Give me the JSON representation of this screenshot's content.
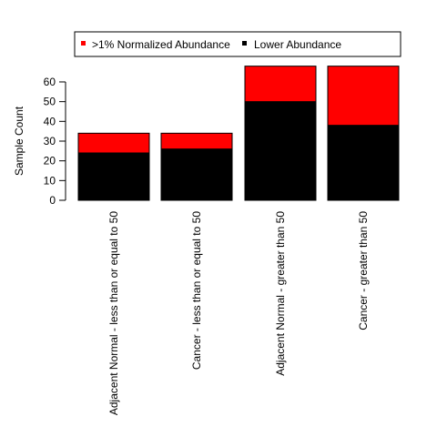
{
  "chart_data": {
    "type": "bar",
    "stacked": true,
    "title": "",
    "xlabel": "",
    "ylabel": "Sample Count",
    "ylim": [
      0,
      65
    ],
    "yticks": [
      0,
      10,
      20,
      30,
      40,
      50,
      60
    ],
    "grid": false,
    "legend_placement": "top",
    "categories": [
      "Adjacent Normal - less than or equal to 50",
      "Cancer - less than or equal to 50",
      "Adjacent Normal - greater than 50",
      "Cancer - greater than 50"
    ],
    "series": [
      {
        "name": "Lower Abundance",
        "color": "#000000",
        "values": [
          24,
          26,
          50,
          38
        ]
      },
      {
        "name": ">1% Normalized Abundance",
        "color": "#ff0000",
        "values": [
          10,
          8,
          18,
          30
        ]
      }
    ],
    "legend": [
      {
        "label": ">1% Normalized Abundance",
        "color": "#ff0000"
      },
      {
        "label": "Lower Abundance",
        "color": "#000000"
      }
    ]
  }
}
